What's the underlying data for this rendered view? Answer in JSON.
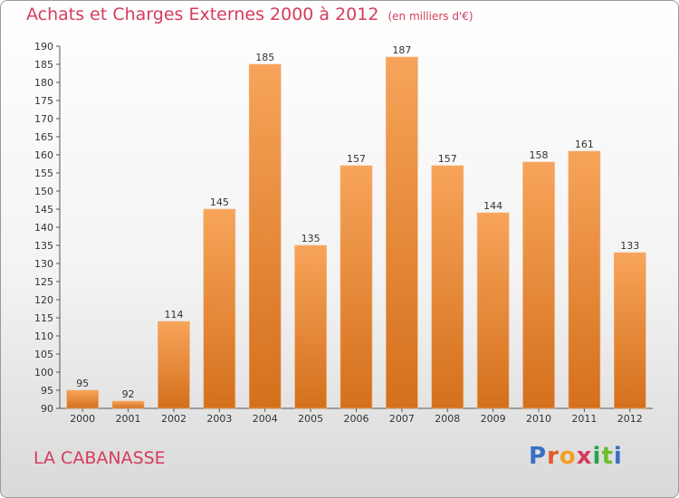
{
  "header": {
    "title": "Achats et Charges Externes 2000 à 2012",
    "unit": "(en milliers d'€)"
  },
  "footer": {
    "town": "LA CABANASSE",
    "logo": "Proxiti"
  },
  "colors": {
    "bar_light": "#f7a45a",
    "bar_dark": "#d4701c",
    "title": "#d53c5c",
    "logo_letters": [
      "#3a6fc4",
      "#e65a2a",
      "#f2a020",
      "#d53c5c",
      "#2aa24a",
      "#6cbf2a",
      "#3a6fc4"
    ]
  },
  "chart_data": {
    "type": "bar",
    "title": "Achats et Charges Externes 2000 à 2012",
    "categories": [
      "2000",
      "2001",
      "2002",
      "2003",
      "2004",
      "2005",
      "2006",
      "2007",
      "2008",
      "2009",
      "2010",
      "2011",
      "2012"
    ],
    "values": [
      95,
      92,
      114,
      145,
      185,
      135,
      157,
      187,
      157,
      144,
      158,
      161,
      133
    ],
    "ylim": [
      90,
      190
    ],
    "ytick_step": 5,
    "grid": false,
    "data_labels": true
  }
}
